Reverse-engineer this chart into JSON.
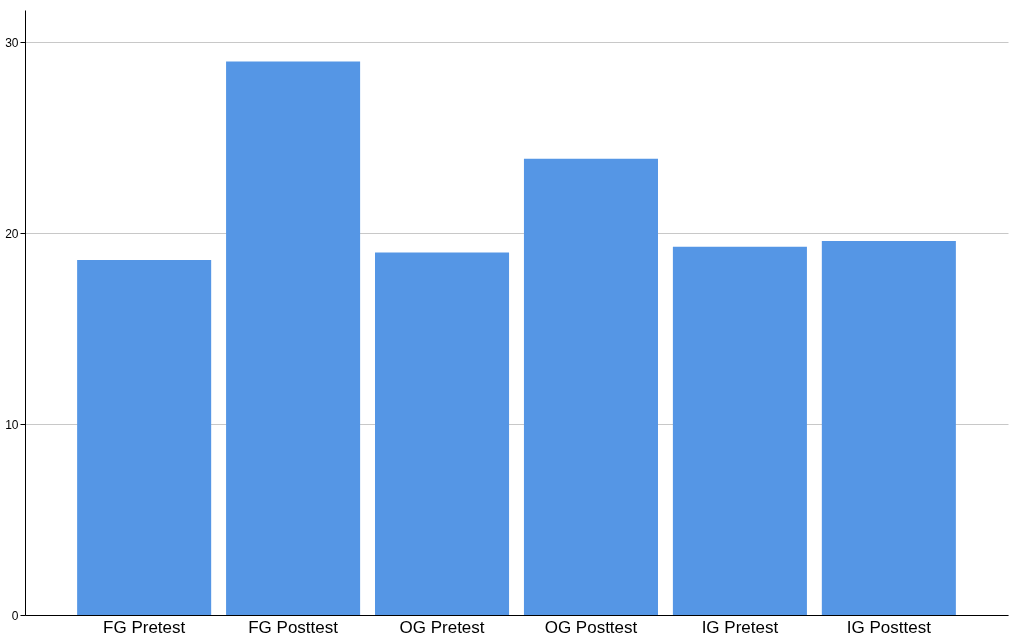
{
  "chart_data": {
    "type": "bar",
    "categories": [
      "FG Pretest",
      "FG Posttest",
      "OG Pretest",
      "OG Posttest",
      "IG Pretest",
      "IG Posttest"
    ],
    "values": [
      18.6,
      29.0,
      19.0,
      23.9,
      19.3,
      19.6
    ],
    "color": "#5596e5",
    "ylim": [
      0,
      31.7
    ],
    "yticks": [
      0,
      10,
      20,
      30
    ],
    "grid": "y"
  }
}
